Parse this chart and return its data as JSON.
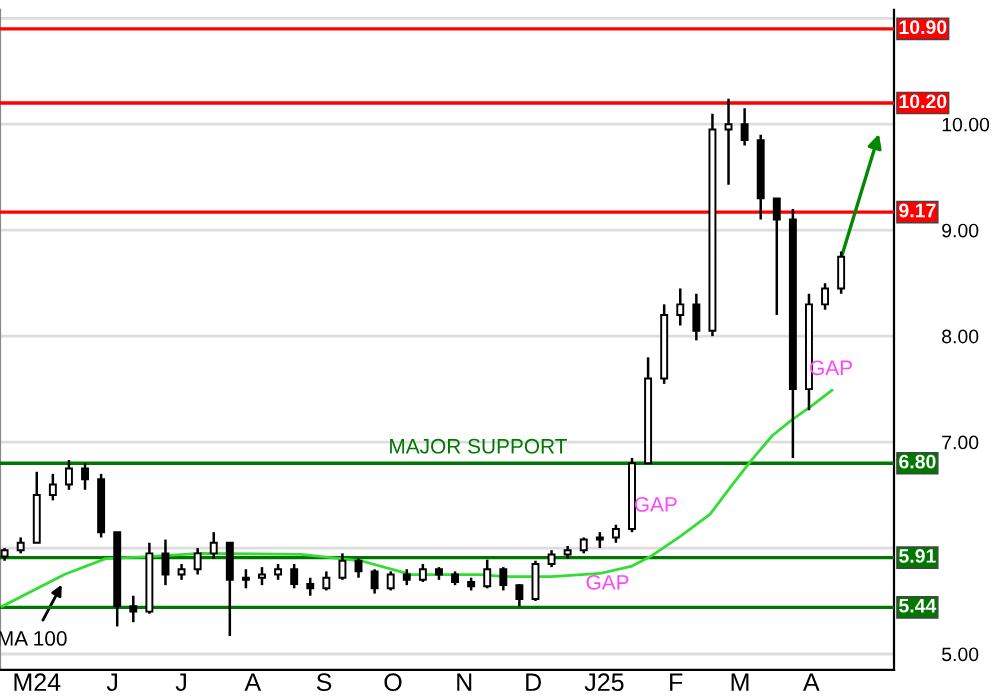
{
  "chart_data": {
    "type": "candlestick",
    "x": [
      "2024-04-29",
      "2024-05-06",
      "2024-05-13",
      "2024-05-20",
      "2024-05-27",
      "2024-06-03",
      "2024-06-10",
      "2024-06-17",
      "2024-06-24",
      "2024-07-01",
      "2024-07-08",
      "2024-07-15",
      "2024-07-22",
      "2024-07-29",
      "2024-08-05",
      "2024-08-12",
      "2024-08-19",
      "2024-08-26",
      "2024-09-02",
      "2024-09-09",
      "2024-09-16",
      "2024-09-23",
      "2024-09-30",
      "2024-10-07",
      "2024-10-14",
      "2024-10-21",
      "2024-10-28",
      "2024-11-04",
      "2024-11-11",
      "2024-11-18",
      "2024-11-25",
      "2024-12-02",
      "2024-12-09",
      "2024-12-16",
      "2024-12-23",
      "2024-12-30",
      "2025-01-06",
      "2025-01-13",
      "2025-01-20",
      "2025-01-27",
      "2025-02-03",
      "2025-02-10",
      "2025-02-17",
      "2025-02-24",
      "2025-03-03",
      "2025-03-10",
      "2025-03-17",
      "2025-03-24",
      "2025-03-31",
      "2025-04-07",
      "2025-04-14",
      "2025-04-21",
      "2025-04-28"
    ],
    "ohlc": [
      [
        5.92,
        6.0,
        5.88,
        5.98
      ],
      [
        5.98,
        6.1,
        5.95,
        6.05
      ],
      [
        6.05,
        6.72,
        6.05,
        6.5
      ],
      [
        6.5,
        6.7,
        6.45,
        6.6
      ],
      [
        6.6,
        6.83,
        6.55,
        6.75
      ],
      [
        6.75,
        6.8,
        6.55,
        6.65
      ],
      [
        6.65,
        6.7,
        6.1,
        6.15
      ],
      [
        6.15,
        6.15,
        5.26,
        5.45
      ],
      [
        5.45,
        5.55,
        5.3,
        5.4
      ],
      [
        5.4,
        6.05,
        5.38,
        5.95
      ],
      [
        5.95,
        6.08,
        5.65,
        5.75
      ],
      [
        5.75,
        5.85,
        5.7,
        5.8
      ],
      [
        5.8,
        6.0,
        5.75,
        5.95
      ],
      [
        5.95,
        6.15,
        5.9,
        6.05
      ],
      [
        6.05,
        6.05,
        5.17,
        5.7
      ],
      [
        5.7,
        5.8,
        5.62,
        5.72
      ],
      [
        5.72,
        5.82,
        5.65,
        5.75
      ],
      [
        5.75,
        5.85,
        5.7,
        5.8
      ],
      [
        5.8,
        5.85,
        5.62,
        5.66
      ],
      [
        5.66,
        5.72,
        5.55,
        5.62
      ],
      [
        5.62,
        5.78,
        5.6,
        5.72
      ],
      [
        5.72,
        5.95,
        5.7,
        5.88
      ],
      [
        5.88,
        5.9,
        5.72,
        5.78
      ],
      [
        5.78,
        5.8,
        5.57,
        5.62
      ],
      [
        5.62,
        5.78,
        5.6,
        5.75
      ],
      [
        5.75,
        5.8,
        5.65,
        5.7
      ],
      [
        5.7,
        5.85,
        5.68,
        5.8
      ],
      [
        5.8,
        5.82,
        5.7,
        5.75
      ],
      [
        5.75,
        5.78,
        5.65,
        5.68
      ],
      [
        5.68,
        5.72,
        5.6,
        5.64
      ],
      [
        5.64,
        5.89,
        5.62,
        5.8
      ],
      [
        5.8,
        5.82,
        5.6,
        5.65
      ],
      [
        5.65,
        5.66,
        5.45,
        5.52
      ],
      [
        5.52,
        5.88,
        5.5,
        5.85
      ],
      [
        5.85,
        5.98,
        5.82,
        5.94
      ],
      [
        5.94,
        6.02,
        5.9,
        5.98
      ],
      [
        5.98,
        6.1,
        5.95,
        6.08
      ],
      [
        6.08,
        6.15,
        6.0,
        6.1
      ],
      [
        6.1,
        6.22,
        6.05,
        6.18
      ],
      [
        6.18,
        6.85,
        6.15,
        6.8
      ],
      [
        6.8,
        7.8,
        6.8,
        7.6
      ],
      [
        7.6,
        8.3,
        7.55,
        8.2
      ],
      [
        8.2,
        8.45,
        8.1,
        8.3
      ],
      [
        8.3,
        8.4,
        7.96,
        8.05
      ],
      [
        8.05,
        10.1,
        8.0,
        9.95
      ],
      [
        9.95,
        10.24,
        9.43,
        10.0
      ],
      [
        10.0,
        10.15,
        9.8,
        9.85
      ],
      [
        9.85,
        9.9,
        9.1,
        9.3
      ],
      [
        9.3,
        9.3,
        8.2,
        9.1
      ],
      [
        9.1,
        9.2,
        6.85,
        7.5
      ],
      [
        7.5,
        8.4,
        7.3,
        8.3
      ],
      [
        8.3,
        8.5,
        8.25,
        8.45
      ],
      [
        8.45,
        8.8,
        8.4,
        8.75
      ]
    ],
    "color": "#000000",
    "series": [
      {
        "name": "MA 100",
        "type": "line",
        "color": "#33dd33",
        "x": [
          "2024-04-28",
          "2024-05-25",
          "2024-06-12",
          "2024-07-01",
          "2024-07-23",
          "2024-09-05",
          "2024-10-01",
          "2024-10-23",
          "2024-11-22",
          "2024-12-03",
          "2024-12-23",
          "2025-01-13",
          "2025-01-27",
          "2025-02-04",
          "2025-02-17",
          "2025-03-02",
          "2025-03-11",
          "2025-03-20",
          "2025-03-29",
          "2025-04-06",
          "2025-04-15",
          "2025-04-24"
        ],
        "values": [
          5.45,
          5.75,
          5.9,
          5.92,
          5.95,
          5.94,
          5.88,
          5.75,
          5.75,
          5.73,
          5.73,
          5.76,
          5.83,
          5.92,
          6.11,
          6.32,
          6.58,
          6.83,
          7.06,
          7.2,
          7.34,
          7.49
        ]
      }
    ],
    "xlim": [
      "2024-04-27",
      "2025-05-21"
    ],
    "xticks": [
      {
        "value": "2024-05-13",
        "label": "M24"
      },
      {
        "value": "2024-06-15",
        "label": "J"
      },
      {
        "value": "2024-07-15",
        "label": "J"
      },
      {
        "value": "2024-08-15",
        "label": "A"
      },
      {
        "value": "2024-09-15",
        "label": "S"
      },
      {
        "value": "2024-10-15",
        "label": "O"
      },
      {
        "value": "2024-11-15",
        "label": "N"
      },
      {
        "value": "2024-12-15",
        "label": "D"
      },
      {
        "value": "2025-01-15",
        "label": "J25"
      },
      {
        "value": "2025-02-15",
        "label": "F"
      },
      {
        "value": "2025-03-15",
        "label": "M"
      },
      {
        "value": "2025-04-15",
        "label": "A"
      }
    ],
    "ylim": [
      4.85,
      11.08
    ],
    "yticks": [
      {
        "value": 5,
        "label": "5.00"
      },
      {
        "value": 6,
        "label": null
      },
      {
        "value": 7,
        "label": "7.00"
      },
      {
        "value": 8,
        "label": "8.00"
      },
      {
        "value": 9,
        "label": "9.00"
      },
      {
        "value": 10,
        "label": "10.00"
      },
      {
        "value": 11,
        "label": null
      }
    ],
    "grid": "y",
    "ref_lines": [
      {
        "axis": "y",
        "value": 10.9,
        "label": "10.90",
        "color": "#ff0000"
      },
      {
        "axis": "y",
        "value": 10.2,
        "label": "10.20",
        "color": "#ff0000"
      },
      {
        "axis": "y",
        "value": 9.17,
        "label": "9.17",
        "color": "#ff0000"
      },
      {
        "axis": "y",
        "value": 6.8,
        "label": "6.80",
        "color": "#007700"
      },
      {
        "axis": "y",
        "value": 5.91,
        "label": "5.91",
        "color": "#007700"
      },
      {
        "axis": "y",
        "value": 5.44,
        "label": "5.44",
        "color": "#007700"
      }
    ],
    "annotations": [
      {
        "text": "MAJOR SUPPORT",
        "x": "2024-10-13",
        "y": 6.8
      },
      "GAP",
      "GAP",
      "GAP"
    ]
  }
}
